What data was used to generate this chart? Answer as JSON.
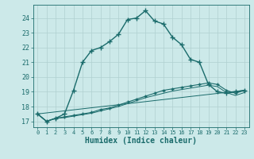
{
  "xlabel": "Humidex (Indice chaleur)",
  "bg_color": "#cce9e9",
  "grid_color": "#b0d0d0",
  "line_color": "#1a6b6b",
  "xlim": [
    -0.5,
    23.5
  ],
  "ylim": [
    16.6,
    24.9
  ],
  "xtick_labels": [
    "0",
    "1",
    "2",
    "3",
    "4",
    "5",
    "6",
    "7",
    "8",
    "9",
    "10",
    "11",
    "12",
    "13",
    "14",
    "15",
    "16",
    "17",
    "18",
    "19",
    "20",
    "21",
    "22",
    "23"
  ],
  "ytick_vals": [
    17,
    18,
    19,
    20,
    21,
    22,
    23,
    24
  ],
  "line1_x": [
    0,
    1,
    2,
    3,
    4,
    5,
    6,
    7,
    8,
    9,
    10,
    11,
    12,
    13,
    14,
    15,
    16,
    17,
    18,
    19,
    20,
    21,
    22,
    23
  ],
  "line1_y": [
    17.5,
    17.0,
    17.2,
    17.5,
    19.1,
    21.0,
    21.8,
    22.0,
    22.4,
    22.9,
    23.9,
    24.0,
    24.5,
    23.8,
    23.6,
    22.7,
    22.2,
    21.2,
    21.0,
    19.5,
    19.0,
    18.9,
    19.0,
    19.1
  ],
  "line2_x": [
    0,
    1,
    2,
    3,
    4,
    5,
    6,
    7,
    8,
    9,
    10,
    11,
    12,
    13,
    14,
    15,
    16,
    17,
    18,
    19,
    20,
    21,
    22,
    23
  ],
  "line2_y": [
    17.5,
    17.0,
    17.2,
    17.3,
    17.4,
    17.5,
    17.6,
    17.8,
    17.9,
    18.1,
    18.3,
    18.5,
    18.7,
    18.9,
    19.1,
    19.2,
    19.3,
    19.4,
    19.5,
    19.6,
    19.5,
    19.1,
    18.9,
    19.1
  ],
  "line3_x": [
    0,
    1,
    2,
    3,
    4,
    5,
    6,
    7,
    8,
    9,
    10,
    11,
    12,
    13,
    14,
    15,
    16,
    17,
    18,
    19,
    20,
    21,
    22,
    23
  ],
  "line3_y": [
    17.5,
    17.0,
    17.2,
    17.25,
    17.35,
    17.45,
    17.55,
    17.7,
    17.85,
    18.0,
    18.2,
    18.4,
    18.6,
    18.75,
    18.9,
    19.05,
    19.15,
    19.25,
    19.35,
    19.45,
    19.35,
    18.95,
    18.75,
    18.95
  ],
  "line4_x": [
    0,
    23
  ],
  "line4_y": [
    17.5,
    19.1
  ]
}
